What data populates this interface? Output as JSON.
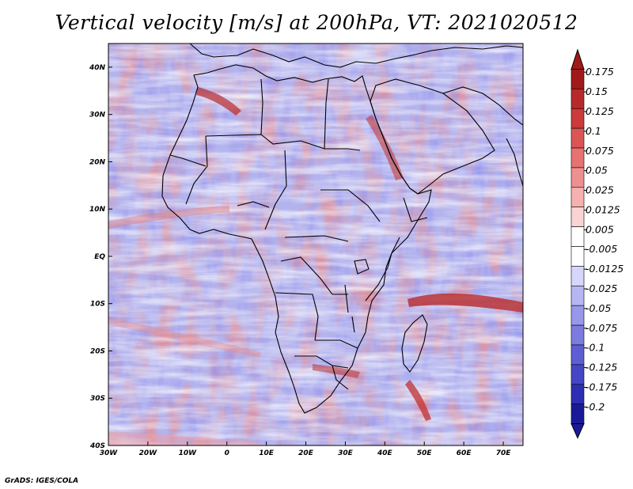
{
  "title": "Vertical velocity [m/s] at 200hPa, VT: 2021020512",
  "footer": "GrADS: IGES/COLA",
  "map": {
    "lon_range": [
      -30,
      75
    ],
    "lat_range": [
      -40,
      45
    ],
    "lon_ticks": [
      {
        "value": -30,
        "label": "30W"
      },
      {
        "value": -20,
        "label": "20W"
      },
      {
        "value": -10,
        "label": "10W"
      },
      {
        "value": 0,
        "label": "0"
      },
      {
        "value": 10,
        "label": "10E"
      },
      {
        "value": 20,
        "label": "20E"
      },
      {
        "value": 30,
        "label": "30E"
      },
      {
        "value": 40,
        "label": "40E"
      },
      {
        "value": 50,
        "label": "50E"
      },
      {
        "value": 60,
        "label": "60E"
      },
      {
        "value": 70,
        "label": "70E"
      }
    ],
    "lat_ticks": [
      {
        "value": 40,
        "label": "40N"
      },
      {
        "value": 30,
        "label": "30N"
      },
      {
        "value": 20,
        "label": "20N"
      },
      {
        "value": 10,
        "label": "10N"
      },
      {
        "value": 0,
        "label": "EQ"
      },
      {
        "value": -10,
        "label": "10S"
      },
      {
        "value": -20,
        "label": "20S"
      },
      {
        "value": -30,
        "label": "30S"
      },
      {
        "value": -40,
        "label": "40S"
      }
    ]
  },
  "colorbar": {
    "labels": [
      "0.175",
      "0.15",
      "0.125",
      "0.1",
      "0.075",
      "0.05",
      "0.025",
      "0.0125",
      "0.005",
      "-0.005",
      "-0.0125",
      "-0.025",
      "-0.05",
      "-0.075",
      "-0.1",
      "-0.125",
      "-0.175",
      "-0.2"
    ],
    "colors": [
      "#a01a1a",
      "#b82a2a",
      "#cc3a3a",
      "#dc5555",
      "#e67272",
      "#ef9090",
      "#f5b0b0",
      "#fad3d3",
      "#ffffff",
      "#ffffff",
      "#d6d6fa",
      "#b6b6f3",
      "#9898ea",
      "#7b7be0",
      "#5e5ed4",
      "#4545c6",
      "#2e2eb4",
      "#1a1a99"
    ]
  },
  "colors": {
    "warm_strong": "#c0303a",
    "warm_light": "#f0a0a0",
    "cool_light": "#a8a8f0",
    "cool_strong": "#5a5ad8"
  }
}
